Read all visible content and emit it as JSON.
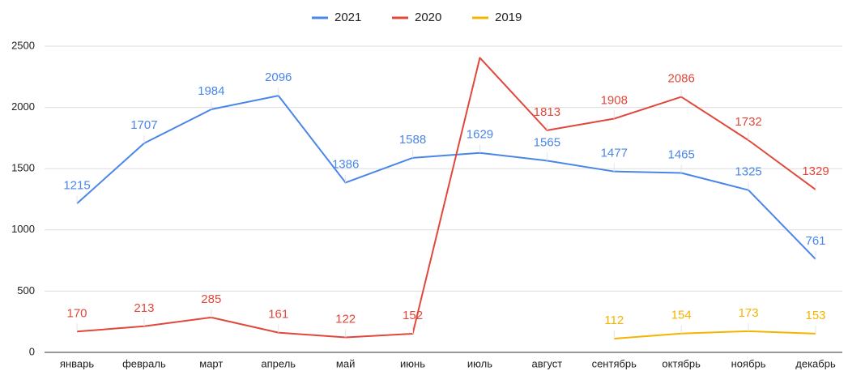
{
  "chart_data": {
    "type": "line",
    "categories": [
      "январь",
      "февраль",
      "март",
      "апрель",
      "май",
      "июнь",
      "июль",
      "август",
      "сентябрь",
      "октябрь",
      "ноябрь",
      "декабрь"
    ],
    "series": [
      {
        "name": "2021",
        "color": "#4a86e8",
        "values": [
          1215,
          1707,
          1984,
          2096,
          1386,
          1588,
          1629,
          1565,
          1477,
          1465,
          1325,
          761
        ]
      },
      {
        "name": "2020",
        "color": "#e0483b",
        "values": [
          170,
          213,
          285,
          161,
          122,
          152,
          2405,
          1813,
          1908,
          2086,
          1732,
          1329
        ],
        "value_labels": [
          "170",
          "213",
          "285",
          "161",
          "122",
          "152",
          null,
          "1813",
          "1908",
          "2086",
          "1732",
          "1329"
        ]
      },
      {
        "name": "2019",
        "color": "#f4b400",
        "values": [
          null,
          null,
          null,
          null,
          null,
          null,
          null,
          null,
          112,
          154,
          173,
          153
        ]
      }
    ],
    "ylim": [
      0,
      2500
    ],
    "yticks": [
      0,
      500,
      1000,
      1500,
      2000,
      2500
    ],
    "grid": true,
    "legend": "top"
  }
}
